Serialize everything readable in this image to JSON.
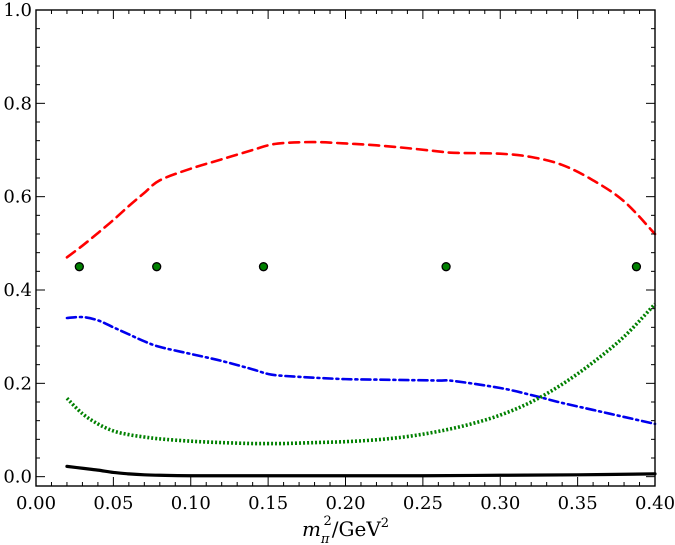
{
  "chart_data": {
    "type": "line",
    "title": "",
    "xlabel": {
      "main": "m",
      "sub": "π",
      "sup": "2",
      "sep": "/",
      "unit": "GeV",
      "unit_sup": "2"
    },
    "ylabel": "",
    "xlim": [
      0.0,
      0.4
    ],
    "ylim": [
      -0.02,
      1.0
    ],
    "xticks": [
      0.0,
      0.05,
      0.1,
      0.15,
      0.2,
      0.25,
      0.3,
      0.35,
      0.4
    ],
    "xtick_labels": [
      "0.00",
      "0.05",
      "0.10",
      "0.15",
      "0.20",
      "0.25",
      "0.30",
      "0.35",
      "0.40"
    ],
    "yticks": [
      0.0,
      0.2,
      0.4,
      0.6,
      0.8,
      1.0
    ],
    "ytick_labels": [
      "0.0",
      "0.2",
      "0.4",
      "0.6",
      "0.8",
      "1.0"
    ],
    "grid": false,
    "legend": "none",
    "series": [
      {
        "style": "dashed",
        "color": "#ff0000",
        "x": [
          0.02,
          0.03,
          0.04,
          0.05,
          0.06,
          0.07,
          0.08,
          0.1,
          0.12,
          0.14,
          0.15,
          0.16,
          0.18,
          0.2,
          0.22,
          0.24,
          0.26,
          0.27,
          0.3,
          0.32,
          0.34,
          0.36,
          0.38,
          0.4
        ],
        "y": [
          0.47,
          0.495,
          0.522,
          0.55,
          0.58,
          0.608,
          0.635,
          0.66,
          0.68,
          0.7,
          0.71,
          0.715,
          0.717,
          0.714,
          0.71,
          0.704,
          0.697,
          0.694,
          0.692,
          0.685,
          0.668,
          0.635,
          0.59,
          0.52
        ]
      },
      {
        "style": "dashdot",
        "color": "#0000ee",
        "x": [
          0.02,
          0.03,
          0.04,
          0.05,
          0.06,
          0.07,
          0.08,
          0.1,
          0.12,
          0.14,
          0.15,
          0.16,
          0.18,
          0.2,
          0.22,
          0.24,
          0.26,
          0.27,
          0.3,
          0.32,
          0.34,
          0.36,
          0.38,
          0.4
        ],
        "y": [
          0.34,
          0.342,
          0.335,
          0.32,
          0.305,
          0.29,
          0.278,
          0.263,
          0.248,
          0.23,
          0.22,
          0.216,
          0.212,
          0.209,
          0.208,
          0.207,
          0.206,
          0.205,
          0.19,
          0.175,
          0.158,
          0.143,
          0.128,
          0.113
        ]
      },
      {
        "style": "dotted",
        "color": "#008000",
        "x": [
          0.02,
          0.03,
          0.04,
          0.05,
          0.06,
          0.07,
          0.08,
          0.1,
          0.12,
          0.14,
          0.15,
          0.16,
          0.18,
          0.2,
          0.22,
          0.24,
          0.26,
          0.28,
          0.3,
          0.32,
          0.34,
          0.36,
          0.38,
          0.4
        ],
        "y": [
          0.168,
          0.135,
          0.113,
          0.098,
          0.09,
          0.085,
          0.081,
          0.076,
          0.073,
          0.071,
          0.071,
          0.071,
          0.073,
          0.075,
          0.079,
          0.086,
          0.097,
          0.112,
          0.132,
          0.16,
          0.198,
          0.245,
          0.3,
          0.37
        ]
      },
      {
        "style": "solid",
        "color": "#000000",
        "x": [
          0.02,
          0.03,
          0.04,
          0.05,
          0.06,
          0.07,
          0.08,
          0.1,
          0.15,
          0.2,
          0.25,
          0.3,
          0.35,
          0.4
        ],
        "y": [
          0.022,
          0.018,
          0.014,
          0.009,
          0.006,
          0.004,
          0.003,
          0.002,
          0.002,
          0.002,
          0.002,
          0.003,
          0.004,
          0.006
        ]
      }
    ],
    "points": {
      "marker": "circle",
      "fill": "#008000",
      "stroke": "#000000",
      "x": [
        0.028,
        0.078,
        0.147,
        0.265,
        0.388
      ],
      "y": [
        0.45,
        0.45,
        0.45,
        0.45,
        0.45
      ]
    }
  }
}
